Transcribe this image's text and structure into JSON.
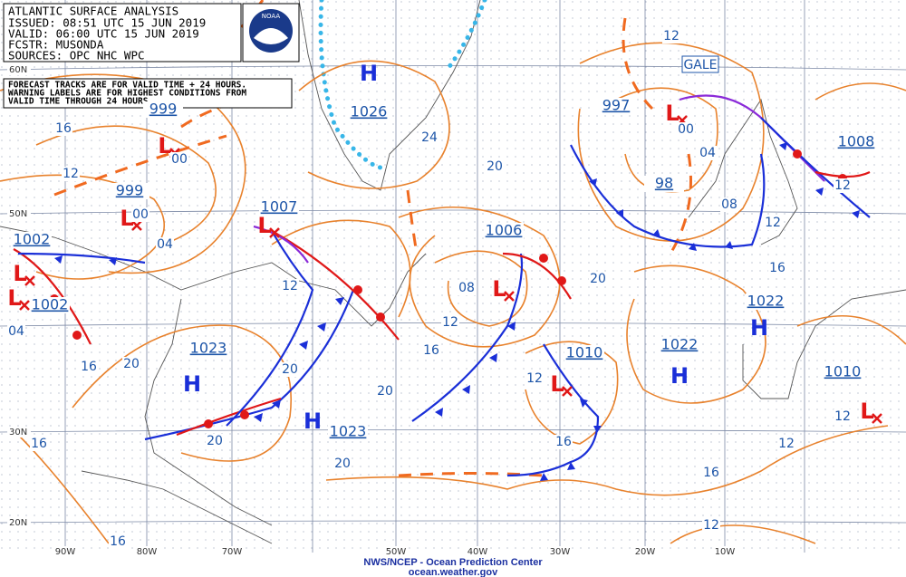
{
  "header": {
    "lines": [
      "ATLANTIC SURFACE ANALYSIS",
      "ISSUED: 08:51 UTC 15 JUN 2019",
      "VALID:  06:00 UTC 15 JUN 2019",
      "FCSTR: MUSONDA",
      "SOURCES: OPC NHC WPC"
    ],
    "logo": "NOAA"
  },
  "note": [
    "FORECAST TRACKS ARE FOR VALID TIME + 24 HOURS.",
    "WARNING LABELS ARE FOR HIGHEST CONDITIONS FROM",
    "VALID TIME THROUGH 24 HOURS"
  ],
  "centers": [
    {
      "letter": "H",
      "pressure": 1026
    },
    {
      "letter": "L",
      "pressure": 999
    },
    {
      "letter": "L",
      "pressure": 999
    },
    {
      "letter": "L",
      "pressure": 1007
    },
    {
      "letter": "L",
      "pressure": 1002
    },
    {
      "letter": "L",
      "pressure": 1002
    },
    {
      "letter": "H",
      "pressure": 1023
    },
    {
      "letter": "H",
      "pressure": 1023
    },
    {
      "letter": "L",
      "pressure": 1006
    },
    {
      "letter": "L",
      "pressure": 997
    },
    {
      "letter": "L",
      "pressure": 1010
    },
    {
      "letter": "H",
      "pressure": 1022
    },
    {
      "letter": "H",
      "pressure": 1022
    },
    {
      "letter": "L",
      "pressure": 1010
    }
  ],
  "pressure_labels": [
    "98",
    "1008"
  ],
  "warning": "GALE",
  "isobar_labels": [
    "16",
    "12",
    "04",
    "00",
    "00",
    "20",
    "16",
    "20",
    "16",
    "12",
    "20",
    "24",
    "20",
    "16",
    "12",
    "08",
    "20",
    "20",
    "12",
    "00",
    "04",
    "08",
    "12",
    "12",
    "16",
    "20",
    "12",
    "16",
    "12",
    "16",
    "12",
    "12",
    "04",
    "16"
  ],
  "latitude_labels": [
    "60N",
    "50N",
    "30N",
    "20N"
  ],
  "longitude_labels": [
    "90W",
    "80W",
    "70W",
    "50W",
    "40W",
    "30W",
    "20W",
    "10W"
  ],
  "footer": [
    "NWS/NCEP - Ocean Prediction Center",
    "ocean.weather.gov"
  ]
}
